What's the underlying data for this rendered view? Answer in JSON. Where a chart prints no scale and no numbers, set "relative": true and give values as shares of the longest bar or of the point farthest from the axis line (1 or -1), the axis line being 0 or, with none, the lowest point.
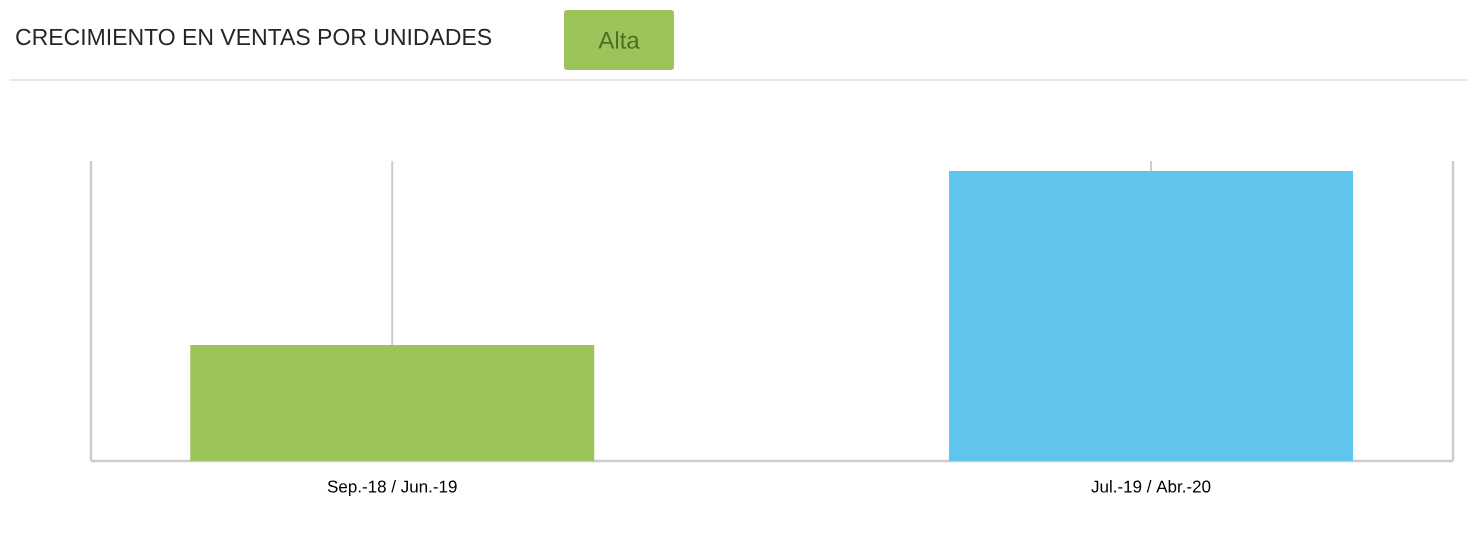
{
  "chart_data": {
    "type": "bar",
    "title": "CRECIMIENTO EN VENTAS POR UNIDADES",
    "subtitle": "Alta",
    "categories": [
      "Sep.-18 / Jun.-19",
      "Jul.-19 / Abr.-20"
    ],
    "values": [
      0.4,
      1
    ],
    "colors": [
      "#9dc45a",
      "#61c4ec"
    ],
    "relative": true,
    "grid": "x"
  }
}
